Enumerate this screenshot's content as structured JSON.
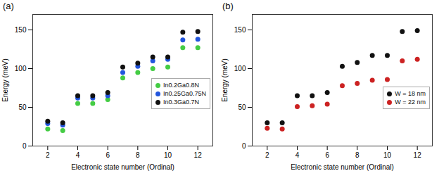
{
  "chart_data": [
    {
      "type": "scatter",
      "title": "(a)",
      "x_label": "Electronic state number (Ordinal)",
      "y_label": "Energy (meV)",
      "x": [
        2,
        3,
        4,
        5,
        6,
        7,
        8,
        9,
        10,
        11,
        12
      ],
      "series": [
        {
          "name": "In0.2Ga0.8N",
          "color": "#44cc44",
          "values": [
            22,
            20,
            55,
            55,
            60,
            88,
            95,
            100,
            102,
            127,
            127
          ]
        },
        {
          "name": "In0.25Ga0.75N",
          "color": "#2255dd",
          "values": [
            29,
            27,
            62,
            62,
            65,
            95,
            103,
            110,
            112,
            137,
            138
          ]
        },
        {
          "name": "In0.3Ga0.7N",
          "color": "#111111",
          "values": [
            32,
            30,
            65,
            65,
            69,
            102,
            107,
            115,
            115,
            147,
            148
          ]
        }
      ],
      "xlim": [
        1,
        13
      ],
      "xticks": [
        2,
        4,
        6,
        8,
        10,
        12
      ],
      "ylim": [
        0,
        170
      ],
      "yticks": [
        0,
        50,
        100,
        150
      ],
      "legend": "lower right",
      "marker": "circle"
    },
    {
      "type": "scatter",
      "title": "(b)",
      "x_label": "Electronic state number (Ordinal)",
      "y_label": "Energy (meV)",
      "x": [
        2,
        3,
        4,
        5,
        6,
        7,
        8,
        9,
        10,
        11,
        12
      ],
      "series": [
        {
          "name": "W = 18 nm",
          "color": "#111111",
          "values": [
            30,
            30,
            65,
            65,
            69,
            103,
            108,
            117,
            117,
            148,
            149
          ]
        },
        {
          "name": "W = 22 nm",
          "color": "#cc2222",
          "values": [
            23,
            22,
            51,
            52,
            54,
            78,
            81,
            85,
            86,
            110,
            112
          ]
        }
      ],
      "xlim": [
        1,
        13
      ],
      "xticks": [
        2,
        4,
        6,
        8,
        10,
        12
      ],
      "ylim": [
        0,
        170
      ],
      "yticks": [
        0,
        50,
        100,
        150
      ],
      "legend": "lower right",
      "marker": "circle"
    }
  ]
}
